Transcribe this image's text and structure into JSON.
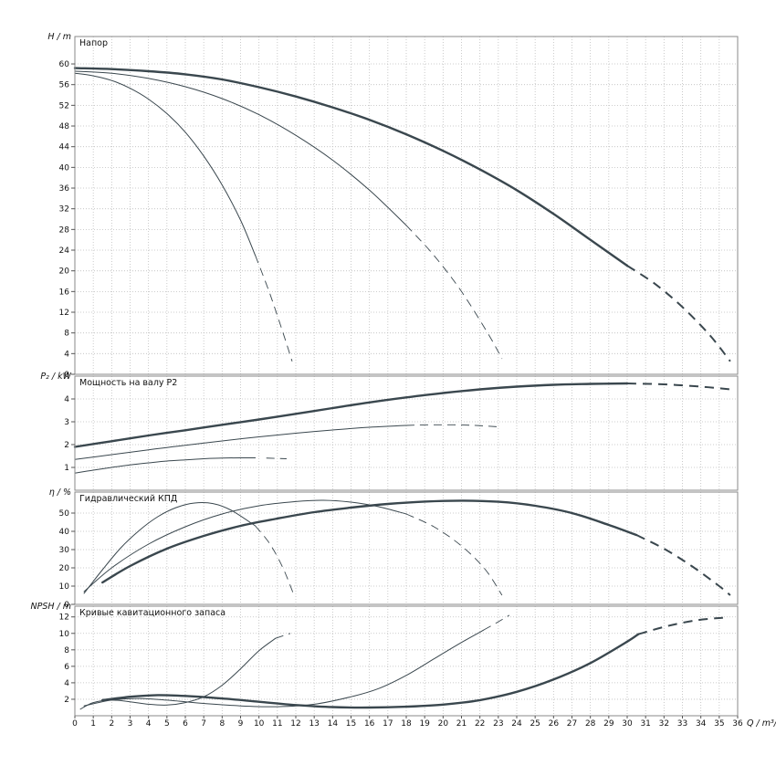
{
  "style": {
    "background": "#ffffff",
    "grid_color": "#bdbdbd",
    "border_color": "#8a8a8a",
    "curve_color": "#3a474e",
    "text_color": "#111111"
  },
  "chart_data": {
    "type": "line",
    "layout": "4 stacked panels, shared x axis, dotted grid on",
    "xlabel": "Q / m³/h",
    "xlim": [
      0,
      36
    ],
    "xticks": [
      0,
      1,
      2,
      3,
      4,
      5,
      6,
      7,
      8,
      9,
      10,
      11,
      12,
      13,
      14,
      15,
      16,
      17,
      18,
      19,
      20,
      21,
      22,
      23,
      24,
      25,
      26,
      27,
      28,
      29,
      30,
      31,
      32,
      33,
      34,
      35,
      36
    ],
    "panels": [
      {
        "title": "Напор",
        "ylabel": "H / m",
        "ylim": [
          0,
          65.3
        ],
        "yticks": [
          0,
          4,
          8,
          12,
          16,
          20,
          24,
          28,
          32,
          36,
          40,
          44,
          48,
          52,
          56,
          60
        ],
        "series": [
          {
            "name": "curve-1",
            "emphasis": "thick",
            "solid": [
              [
                0,
                59.2
              ],
              [
                2,
                59
              ],
              [
                4,
                58.6
              ],
              [
                6,
                58
              ],
              [
                8,
                57
              ],
              [
                10,
                55.5
              ],
              [
                12,
                53.7
              ],
              [
                14,
                51.6
              ],
              [
                16,
                49.2
              ],
              [
                18,
                46.4
              ],
              [
                20,
                43.2
              ],
              [
                22,
                39.6
              ],
              [
                24,
                35.6
              ],
              [
                26,
                31
              ],
              [
                28,
                26
              ],
              [
                30,
                21
              ]
            ],
            "dashed": [
              [
                30,
                21
              ],
              [
                31.5,
                17.5
              ],
              [
                33,
                13
              ],
              [
                34.5,
                7.5
              ],
              [
                35.6,
                2.5
              ]
            ]
          },
          {
            "name": "curve-2",
            "emphasis": "thin",
            "solid": [
              [
                0,
                58.6
              ],
              [
                2,
                58.2
              ],
              [
                4,
                57.2
              ],
              [
                6,
                55.6
              ],
              [
                8,
                53.3
              ],
              [
                10,
                50.2
              ],
              [
                12,
                46.2
              ],
              [
                14,
                41.4
              ],
              [
                16,
                35.6
              ],
              [
                18,
                28.8
              ]
            ],
            "dashed": [
              [
                18,
                28.8
              ],
              [
                19.5,
                23
              ],
              [
                21,
                16
              ],
              [
                22.5,
                7.5
              ],
              [
                23.2,
                3
              ]
            ]
          },
          {
            "name": "curve-3",
            "emphasis": "thin",
            "solid": [
              [
                0,
                58.2
              ],
              [
                1,
                57.7
              ],
              [
                2,
                56.8
              ],
              [
                3,
                55.3
              ],
              [
                4,
                53.2
              ],
              [
                5,
                50.4
              ],
              [
                6,
                46.8
              ],
              [
                7,
                42.2
              ],
              [
                8,
                36.6
              ],
              [
                9,
                29.8
              ],
              [
                9.8,
                23
              ]
            ],
            "dashed": [
              [
                9.8,
                23
              ],
              [
                10.6,
                15.5
              ],
              [
                11.4,
                7
              ],
              [
                11.8,
                2.5
              ]
            ]
          }
        ]
      },
      {
        "title": "Мощность на валу P2",
        "ylabel": "P₂ / kW",
        "ylim": [
          0,
          5
        ],
        "yticks": [
          1,
          2,
          3,
          4
        ],
        "series": [
          {
            "name": "curve-1",
            "emphasis": "thick",
            "solid": [
              [
                0,
                1.9
              ],
              [
                2,
                2.15
              ],
              [
                4,
                2.4
              ],
              [
                6,
                2.63
              ],
              [
                8,
                2.87
              ],
              [
                10,
                3.1
              ],
              [
                12,
                3.35
              ],
              [
                14,
                3.6
              ],
              [
                16,
                3.85
              ],
              [
                18,
                4.07
              ],
              [
                20,
                4.26
              ],
              [
                22,
                4.42
              ],
              [
                24,
                4.54
              ],
              [
                26,
                4.62
              ],
              [
                28,
                4.66
              ],
              [
                30,
                4.68
              ]
            ],
            "dashed": [
              [
                30,
                4.68
              ],
              [
                32,
                4.64
              ],
              [
                34,
                4.54
              ],
              [
                35.6,
                4.42
              ]
            ]
          },
          {
            "name": "curve-2",
            "emphasis": "thin",
            "solid": [
              [
                0,
                1.35
              ],
              [
                2,
                1.56
              ],
              [
                4,
                1.77
              ],
              [
                6,
                1.97
              ],
              [
                8,
                2.16
              ],
              [
                10,
                2.34
              ],
              [
                12,
                2.5
              ],
              [
                14,
                2.64
              ],
              [
                16,
                2.76
              ],
              [
                18,
                2.84
              ]
            ],
            "dashed": [
              [
                18,
                2.84
              ],
              [
                19.5,
                2.87
              ],
              [
                21.5,
                2.85
              ],
              [
                23.2,
                2.77
              ]
            ]
          },
          {
            "name": "curve-3",
            "emphasis": "thin",
            "solid": [
              [
                0,
                0.75
              ],
              [
                1,
                0.88
              ],
              [
                2,
                1.0
              ],
              [
                3,
                1.11
              ],
              [
                4,
                1.2
              ],
              [
                5,
                1.28
              ],
              [
                6,
                1.33
              ],
              [
                7,
                1.38
              ],
              [
                8,
                1.41
              ],
              [
                9,
                1.42
              ],
              [
                9.8,
                1.42
              ]
            ],
            "dashed": [
              [
                10.4,
                1.41
              ],
              [
                11.5,
                1.38
              ]
            ]
          }
        ]
      },
      {
        "title": "Гидравлический КПД",
        "ylabel": "η / %",
        "ylim": [
          0,
          61.5
        ],
        "yticks": [
          0,
          10,
          20,
          30,
          40,
          50
        ],
        "series": [
          {
            "name": "curve-1",
            "emphasis": "thick",
            "solid": [
              [
                1.5,
                12
              ],
              [
                3,
                21
              ],
              [
                5,
                30.5
              ],
              [
                7,
                37.5
              ],
              [
                9,
                43
              ],
              [
                11,
                47
              ],
              [
                13,
                50.5
              ],
              [
                15,
                53
              ],
              [
                17,
                55
              ],
              [
                19,
                56.3
              ],
              [
                21,
                56.8
              ],
              [
                23,
                56.2
              ],
              [
                25,
                54
              ],
              [
                27,
                50
              ],
              [
                29,
                43.5
              ],
              [
                30.5,
                38
              ]
            ],
            "dashed": [
              [
                30.5,
                38
              ],
              [
                32,
                30.5
              ],
              [
                33.5,
                21
              ],
              [
                35,
                10
              ],
              [
                35.6,
                5
              ]
            ]
          },
          {
            "name": "curve-2",
            "emphasis": "thin",
            "solid": [
              [
                0.5,
                7
              ],
              [
                2,
                20
              ],
              [
                4,
                33
              ],
              [
                6,
                42.5
              ],
              [
                8,
                49.5
              ],
              [
                10,
                54
              ],
              [
                12,
                56.3
              ],
              [
                13.5,
                57
              ],
              [
                15,
                56
              ],
              [
                16.5,
                53.5
              ],
              [
                18,
                49.5
              ]
            ],
            "dashed": [
              [
                18,
                49.5
              ],
              [
                19.5,
                42.5
              ],
              [
                21,
                32
              ],
              [
                22.3,
                19
              ],
              [
                23.2,
                5
              ]
            ]
          },
          {
            "name": "curve-3",
            "emphasis": "thin",
            "solid": [
              [
                0.5,
                6
              ],
              [
                1.5,
                19
              ],
              [
                2.5,
                31
              ],
              [
                3.5,
                40.5
              ],
              [
                4.5,
                48
              ],
              [
                5.5,
                53
              ],
              [
                6.5,
                55.5
              ],
              [
                7.5,
                55.2
              ],
              [
                8.5,
                51.5
              ],
              [
                9.8,
                43
              ]
            ],
            "dashed": [
              [
                9.8,
                43
              ],
              [
                10.6,
                33
              ],
              [
                11.3,
                20
              ],
              [
                11.9,
                5
              ]
            ]
          }
        ]
      },
      {
        "title": "Кривые кавитационного запаса",
        "ylabel": "NPSH / m",
        "ylim": [
          0,
          13.3
        ],
        "yticks": [
          2,
          4,
          6,
          8,
          10,
          12
        ],
        "series": [
          {
            "name": "curve-1",
            "emphasis": "thick",
            "solid": [
              [
                1.5,
                1.9
              ],
              [
                3,
                2.3
              ],
              [
                4.5,
                2.5
              ],
              [
                6,
                2.4
              ],
              [
                8,
                2.1
              ],
              [
                10,
                1.7
              ],
              [
                12,
                1.3
              ],
              [
                14,
                1.05
              ],
              [
                16,
                1.0
              ],
              [
                18,
                1.1
              ],
              [
                20,
                1.35
              ],
              [
                22,
                1.9
              ],
              [
                24,
                2.9
              ],
              [
                26,
                4.4
              ],
              [
                28,
                6.4
              ],
              [
                30,
                9.0
              ],
              [
                30.6,
                9.9
              ]
            ],
            "dashed": [
              [
                30.6,
                9.9
              ],
              [
                32.2,
                10.9
              ],
              [
                33.8,
                11.6
              ],
              [
                35.2,
                11.9
              ]
            ]
          },
          {
            "name": "curve-2",
            "emphasis": "thin",
            "solid": [
              [
                0.5,
                1.2
              ],
              [
                2,
                1.9
              ],
              [
                3.5,
                2.1
              ],
              [
                5,
                1.9
              ],
              [
                7,
                1.5
              ],
              [
                9,
                1.2
              ],
              [
                11,
                1.1
              ],
              [
                13,
                1.4
              ],
              [
                15,
                2.3
              ],
              [
                16.5,
                3.3
              ],
              [
                18,
                4.9
              ],
              [
                19.5,
                6.9
              ],
              [
                21,
                8.9
              ],
              [
                22.2,
                10.4
              ]
            ],
            "dashed": [
              [
                22.2,
                10.4
              ],
              [
                23,
                11.4
              ],
              [
                23.6,
                12.2
              ]
            ]
          },
          {
            "name": "curve-3",
            "emphasis": "thin",
            "solid": [
              [
                0.3,
                0.8
              ],
              [
                1,
                1.6
              ],
              [
                2,
                1.9
              ],
              [
                3,
                1.7
              ],
              [
                4,
                1.4
              ],
              [
                5,
                1.3
              ],
              [
                6,
                1.6
              ],
              [
                7,
                2.3
              ],
              [
                8,
                3.7
              ],
              [
                9,
                5.7
              ],
              [
                10,
                7.9
              ],
              [
                10.9,
                9.4
              ]
            ],
            "dashed": [
              [
                10.9,
                9.4
              ],
              [
                11.7,
                10.0
              ]
            ]
          }
        ]
      }
    ]
  }
}
